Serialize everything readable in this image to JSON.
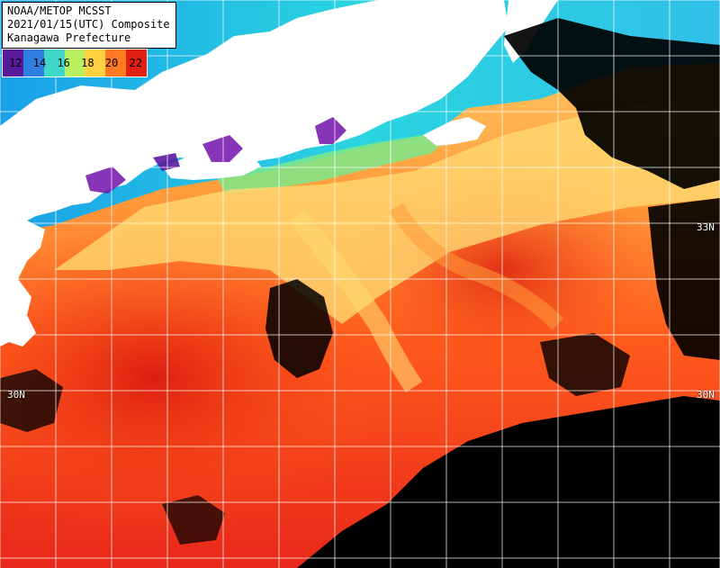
{
  "header": {
    "line1": "NOAA/METOP MCSST",
    "line2": "2021/01/15(UTC) Composite",
    "line3": "Kanagawa Prefecture"
  },
  "legend": {
    "labels": [
      "12",
      "14",
      "16",
      "18",
      "20",
      "22"
    ],
    "colors": [
      "#5a1a9c",
      "#2f7fe0",
      "#3fd8c8",
      "#b8f060",
      "#ffd040",
      "#ff7a20",
      "#e02010"
    ]
  },
  "grid": {
    "latitude_labels": {
      "n33_right": "33N",
      "n30_left": "30N",
      "n30_right": "30N"
    }
  },
  "palette": {
    "land": "#ffffff",
    "cloud": "#000000",
    "cold_coast": "#2ad4e0",
    "cyan": "#30c0e8",
    "green": "#7de88a",
    "yellow": "#ffd870",
    "orange": "#ff9a3a",
    "red_orange": "#ff5a1c",
    "red": "#e8281a",
    "purple": "#7a20b0",
    "grid_line": "#ffffff"
  }
}
